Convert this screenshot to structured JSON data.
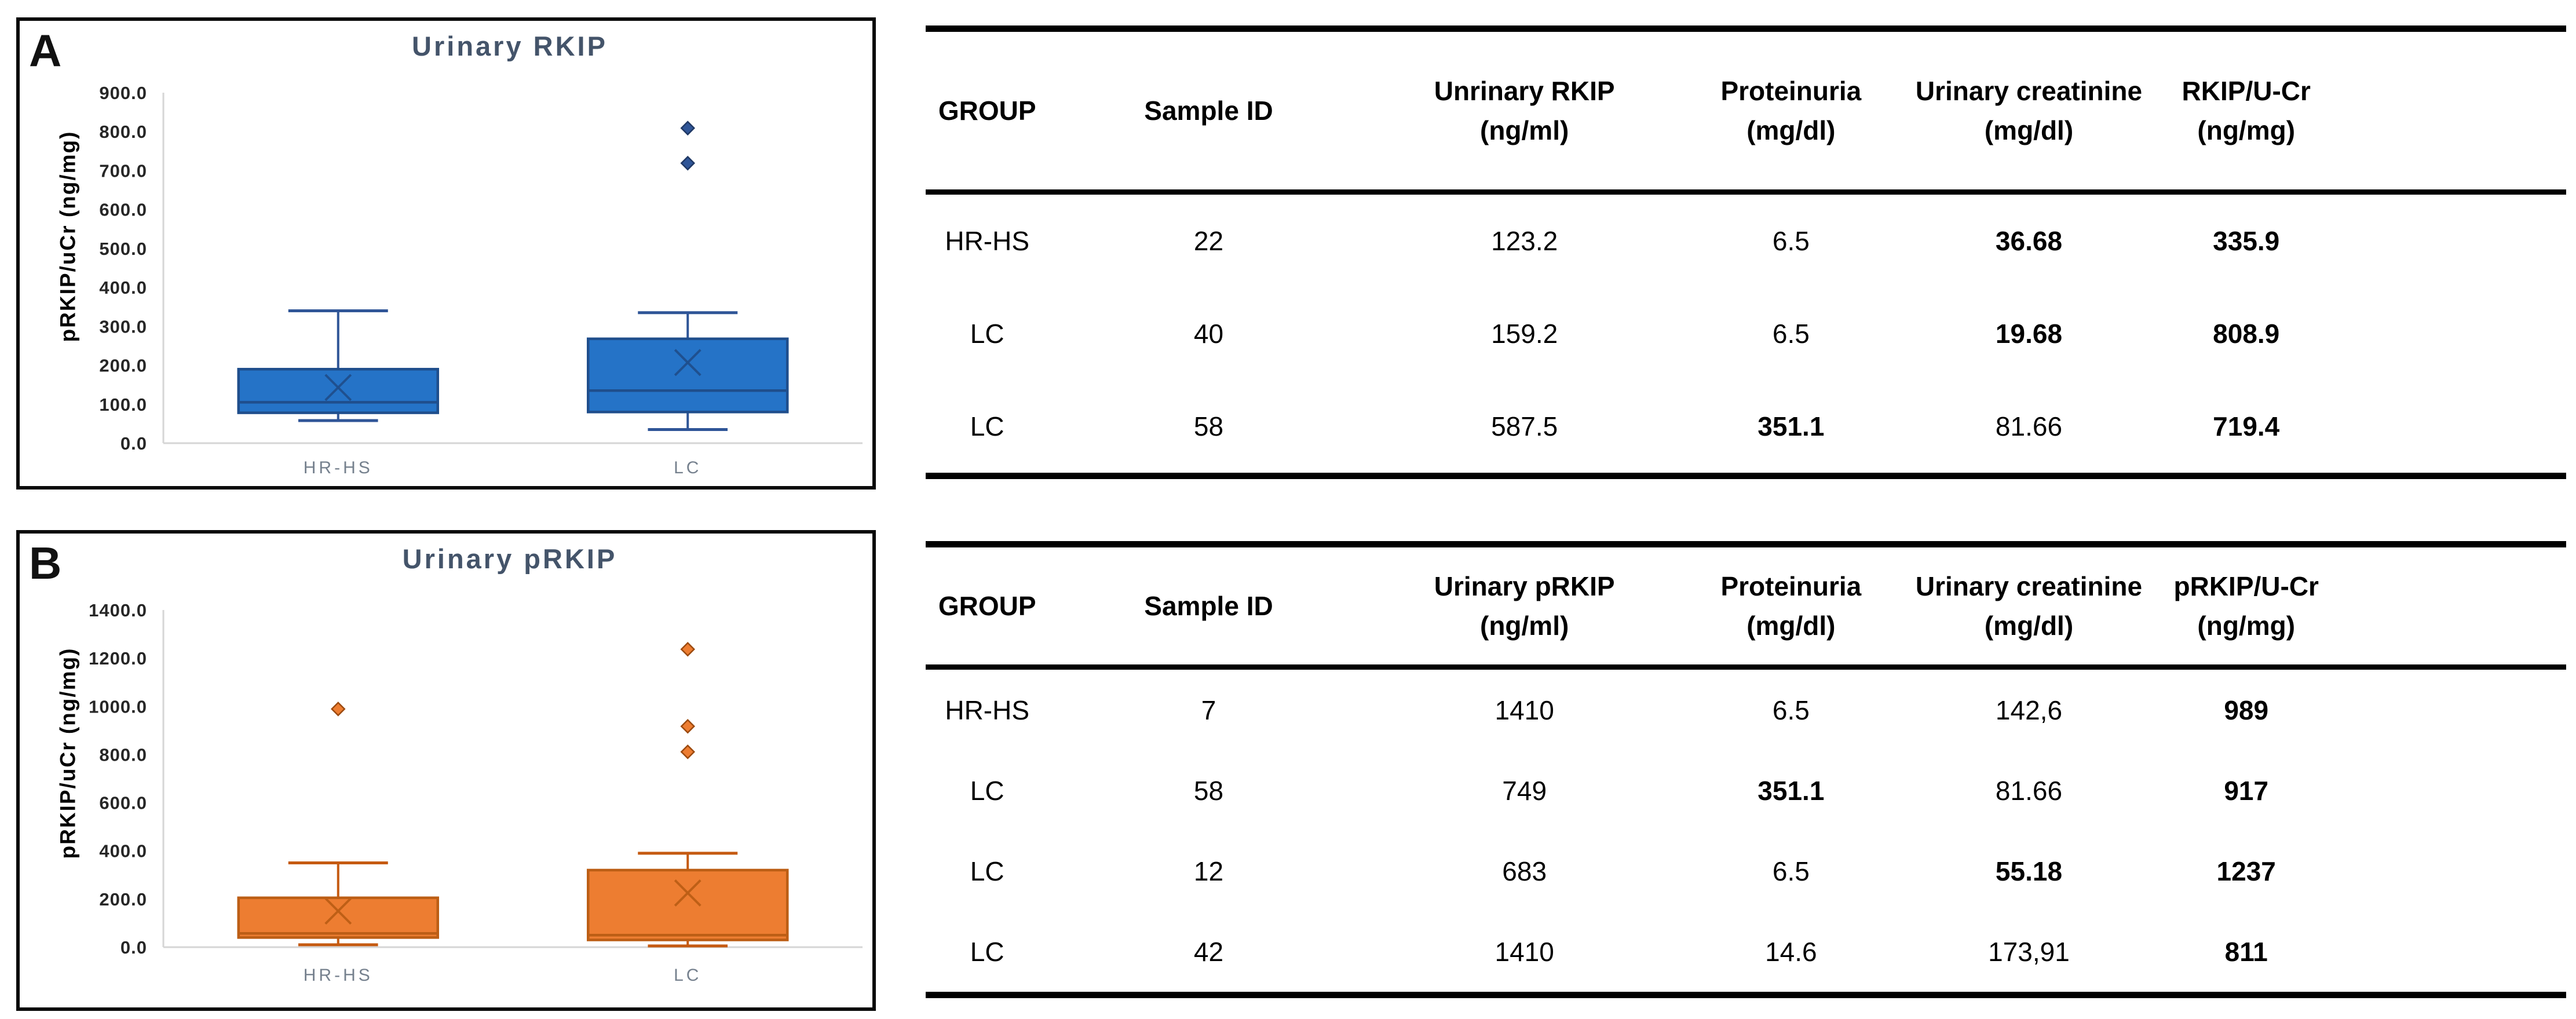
{
  "chart_data": [
    {
      "type": "box",
      "panel_label": "A",
      "title": "Urinary RKIP",
      "y_label": "pRKIP/uCr (ng/mg)",
      "xlabel": "",
      "ylim": [
        0,
        900
      ],
      "ytick_step": 100,
      "ytick_decimals": 1,
      "grid": false,
      "legend": "none",
      "categories": [
        "HR-HS",
        "LC"
      ],
      "colors": {
        "box_fill": "#2573C7",
        "box_stroke": "#1F4E8C",
        "whisker": "#2F5597",
        "outlier_fill": "#2F5597",
        "outlier_stroke": "#1F3864"
      },
      "series": [
        {
          "category": "HR-HS",
          "min": 58,
          "q1": 78,
          "median": 105,
          "mean": 143,
          "q3": 190,
          "max": 340,
          "outliers": []
        },
        {
          "category": "LC",
          "min": 35,
          "q1": 80,
          "median": 135,
          "mean": 207,
          "q3": 268,
          "max": 335,
          "outliers": [
            809,
            719
          ]
        }
      ]
    },
    {
      "type": "box",
      "panel_label": "B",
      "title": "Urinary pRKIP",
      "y_label": "pRKIP/uCr (ng/mg)",
      "xlabel": "",
      "ylim": [
        0,
        1400
      ],
      "ytick_step": 200,
      "ytick_decimals": 1,
      "grid": false,
      "legend": "none",
      "categories": [
        "HR-HS",
        "LC"
      ],
      "colors": {
        "box_fill": "#ED7D31",
        "box_stroke": "#BC5E15",
        "whisker": "#C55A11",
        "outlier_fill": "#ED7D31",
        "outlier_stroke": "#9C4A0F"
      },
      "series": [
        {
          "category": "HR-HS",
          "min": 10,
          "q1": 40,
          "median": 57,
          "mean": 150,
          "q3": 205,
          "max": 350,
          "outliers": [
            989
          ]
        },
        {
          "category": "LC",
          "min": 5,
          "q1": 30,
          "median": 50,
          "mean": 225,
          "q3": 320,
          "max": 390,
          "outliers": [
            1237,
            917,
            811
          ]
        }
      ]
    }
  ],
  "tables": [
    {
      "id": "A",
      "headers": [
        {
          "line1": "GROUP",
          "line2": ""
        },
        {
          "line1": "Sample ID",
          "line2": ""
        },
        {
          "line1": "Unrinary RKIP",
          "line2": "(ng/ml)"
        },
        {
          "line1": "Proteinuria",
          "line2": "(mg/dl)"
        },
        {
          "line1": "Urinary creatinine",
          "line2": "(mg/dl)"
        },
        {
          "line1": "RKIP/U-Cr",
          "line2": "(ng/mg)"
        }
      ],
      "rows": [
        [
          "HR-HS",
          "22",
          "123.2",
          "6.5",
          "36.68",
          "335.9"
        ],
        [
          "LC",
          "40",
          "159.2",
          "6.5",
          "19.68",
          "808.9"
        ],
        [
          "LC",
          "58",
          "587.5",
          "351.1",
          "81.66",
          "719.4"
        ]
      ],
      "bold": [
        [
          0,
          0,
          0,
          0,
          1,
          1
        ],
        [
          0,
          0,
          0,
          0,
          1,
          1
        ],
        [
          0,
          0,
          0,
          1,
          0,
          1
        ]
      ]
    },
    {
      "id": "B",
      "headers": [
        {
          "line1": "GROUP",
          "line2": ""
        },
        {
          "line1": "Sample ID",
          "line2": ""
        },
        {
          "line1": "Urinary pRKIP",
          "line2": "(ng/ml)"
        },
        {
          "line1": "Proteinuria",
          "line2": "(mg/dl)"
        },
        {
          "line1": "Urinary creatinine",
          "line2": "(mg/dl)"
        },
        {
          "line1": "pRKIP/U-Cr",
          "line2": "(ng/mg)"
        }
      ],
      "rows": [
        [
          "HR-HS",
          "7",
          "1410",
          "6.5",
          "142,6",
          "989"
        ],
        [
          "LC",
          "58",
          "749",
          "351.1",
          "81.66",
          "917"
        ],
        [
          "LC",
          "12",
          "683",
          "6.5",
          "55.18",
          "1237"
        ],
        [
          "LC",
          "42",
          "1410",
          "14.6",
          "173,91",
          "811"
        ]
      ],
      "bold": [
        [
          0,
          0,
          0,
          0,
          0,
          1
        ],
        [
          0,
          0,
          0,
          1,
          0,
          1
        ],
        [
          0,
          0,
          0,
          0,
          1,
          1
        ],
        [
          0,
          0,
          0,
          0,
          0,
          1
        ]
      ]
    }
  ]
}
